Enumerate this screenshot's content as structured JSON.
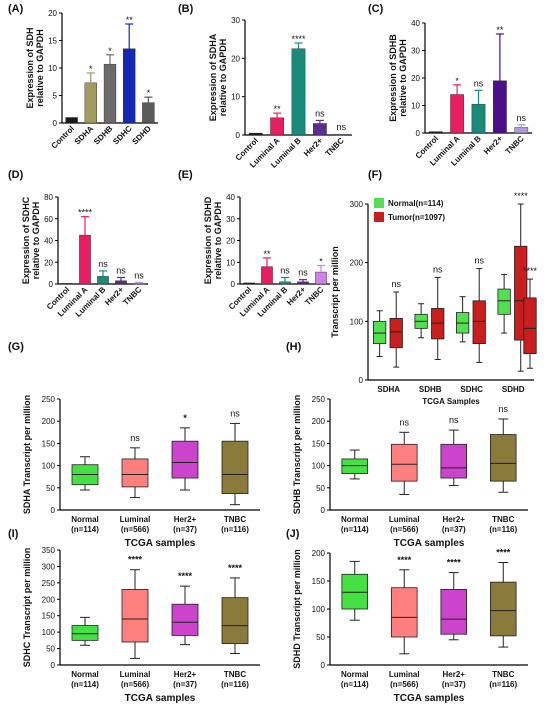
{
  "chart_data": [
    {
      "panel": "(A)",
      "type": "bar",
      "ylabel": "Expression of SDH\nrelative to GAPDH",
      "ylim": [
        0,
        20
      ],
      "yticks": [
        0,
        5,
        10,
        15,
        20
      ],
      "categories": [
        "Control",
        "SDHA",
        "SDHB",
        "SDHC",
        "SDHD"
      ],
      "values": [
        1,
        7.3,
        10.7,
        13.5,
        3.7
      ],
      "errors": [
        0,
        1.8,
        1.7,
        4.5,
        1.0
      ],
      "significance": [
        "",
        "*",
        "*",
        "**",
        "*"
      ],
      "colors": [
        "#1a1a1a",
        "#a39a5e",
        "#6b6b6b",
        "#1428b4",
        "#5a5a5a"
      ]
    },
    {
      "panel": "(B)",
      "type": "bar",
      "ylabel": "Expression of SDHA\nrelative to GAPDH",
      "ylim": [
        0,
        30
      ],
      "yticks": [
        0,
        10,
        20,
        30
      ],
      "categories": [
        "Control",
        "Luminal A",
        "Luminal B",
        "Her2+",
        "TNBC"
      ],
      "values": [
        0.5,
        4.5,
        22.5,
        3,
        0.2
      ],
      "errors": [
        0,
        1.2,
        1.5,
        0.8,
        0
      ],
      "significance": [
        "",
        "**",
        "****",
        "ns",
        "ns"
      ],
      "colors": [
        "#1a1a1a",
        "#e81e63",
        "#1b8a7a",
        "#5b2d8e",
        "#b29ad6"
      ]
    },
    {
      "panel": "(C)",
      "type": "bar",
      "ylabel": "Expression of SDHB\nrelative to GAPDH",
      "ylim": [
        0,
        40
      ],
      "yticks": [
        0,
        10,
        20,
        30,
        40
      ],
      "categories": [
        "Control",
        "Luminal A",
        "Luminal B",
        "Her2+",
        "TNBC"
      ],
      "values": [
        0.5,
        14,
        10.5,
        19,
        2
      ],
      "errors": [
        0,
        3.5,
        5,
        17,
        1
      ],
      "significance": [
        "",
        "*",
        "ns",
        "**",
        "ns"
      ],
      "colors": [
        "#1a1a1a",
        "#e81e63",
        "#1b8a7a",
        "#4b0f8a",
        "#b29ad6"
      ]
    },
    {
      "panel": "(D)",
      "type": "bar",
      "ylabel": "Expression of SDHC\nrelative to GAPDH",
      "ylim": [
        0,
        80
      ],
      "yticks": [
        0,
        20,
        40,
        60,
        80
      ],
      "categories": [
        "Control",
        "Luminal A",
        "Luminal B",
        "Her2+",
        "TNBC"
      ],
      "values": [
        0.5,
        45,
        7,
        3,
        0.5
      ],
      "errors": [
        0,
        17,
        5,
        3,
        1
      ],
      "significance": [
        "",
        "****",
        "ns",
        "ns",
        "ns"
      ],
      "colors": [
        "#1a1a1a",
        "#e81e63",
        "#1b8a7a",
        "#5b2d8e",
        "#b29ad6"
      ]
    },
    {
      "panel": "(E)",
      "type": "bar",
      "ylabel": "Expression of SDHD\nrelative to GAPDH",
      "ylim": [
        0,
        40
      ],
      "yticks": [
        0,
        10,
        20,
        30,
        40
      ],
      "categories": [
        "Control",
        "Luminal A",
        "Luminal B",
        "Her2+",
        "TNBC"
      ],
      "values": [
        0.5,
        8,
        1,
        1,
        5.5
      ],
      "errors": [
        0,
        4,
        2,
        1,
        3
      ],
      "significance": [
        "",
        "**",
        "ns",
        "ns",
        "*"
      ],
      "colors": [
        "#1a1a1a",
        "#e81e63",
        "#1b8a7a",
        "#5b2d8e",
        "#d080e8"
      ]
    },
    {
      "panel": "(F)",
      "type": "box",
      "ylabel": "Transcript per million",
      "xlabel": "TCGA Samples",
      "ylim": [
        0,
        300
      ],
      "yticks": [
        0,
        100,
        200,
        300
      ],
      "categories": [
        "SDHA",
        "SDHB",
        "SDHC",
        "SDHD"
      ],
      "legend": [
        "Normal(n=114)",
        "Tumor(n=1097)"
      ],
      "legend_colors": [
        "#52e052",
        "#c81e1e"
      ],
      "series": [
        {
          "name": "Normal(n=114)",
          "boxes": [
            [
              40,
              62,
              80,
              100,
              118
            ],
            [
              72,
              88,
              100,
              112,
              130
            ],
            [
              65,
              80,
              97,
              115,
              142
            ],
            [
              80,
              112,
              135,
              155,
              180
            ]
          ]
        },
        {
          "name": "Tumor(n=1097)",
          "boxes": [
            [
              22,
              55,
              82,
              105,
              150
            ],
            [
              35,
              70,
              97,
              122,
              175
            ],
            [
              30,
              62,
              100,
              135,
              190
            ],
            [
              15,
              68,
              135,
              228,
              300
            ]
          ]
        },
        {
          "name": "Tumor-SDHD-right",
          "boxes": []
        }
      ],
      "extra_box": [
        20,
        45,
        88,
        140,
        172
      ],
      "significance": [
        "ns",
        "ns",
        "ns",
        "****",
        "****"
      ]
    },
    {
      "panel": "(G)",
      "type": "box",
      "ylabel": "SDHA Transcript per million",
      "xlabel": "TCGA samples",
      "ylim": [
        0,
        250
      ],
      "yticks": [
        0,
        50,
        100,
        150,
        200,
        250
      ],
      "categories": [
        "Normal\n(n=114)",
        "Luminal\n(n=566)",
        "Her2+\n(n=37)",
        "TNBC\n(n=116)"
      ],
      "boxes": [
        [
          45,
          57,
          80,
          102,
          120
        ],
        [
          28,
          52,
          80,
          115,
          140
        ],
        [
          45,
          72,
          107,
          155,
          185
        ],
        [
          12,
          37,
          80,
          155,
          195
        ]
      ],
      "significance": [
        "",
        "ns",
        "*",
        "ns"
      ],
      "colors": [
        "#44e044",
        "#ff7f7f",
        "#cc44cc",
        "#8a7a3c"
      ]
    },
    {
      "panel": "(H)",
      "type": "box",
      "ylabel": "SDHB Transcript per million",
      "xlabel": "TCGA samples",
      "ylim": [
        0,
        250
      ],
      "yticks": [
        0,
        50,
        100,
        150,
        200,
        250
      ],
      "categories": [
        "Normal\n(n=114)",
        "Luminal\n(n=566)",
        "Her2+\n(n=37)",
        "TNBC\n(n=116)"
      ],
      "boxes": [
        [
          70,
          82,
          100,
          115,
          135
        ],
        [
          35,
          65,
          103,
          148,
          175
        ],
        [
          55,
          72,
          95,
          148,
          180
        ],
        [
          40,
          65,
          105,
          170,
          205
        ]
      ],
      "significance": [
        "",
        "ns",
        "ns",
        "ns"
      ],
      "colors": [
        "#44e044",
        "#ff7f7f",
        "#cc44cc",
        "#8a7a3c"
      ]
    },
    {
      "panel": "(I)",
      "type": "box",
      "ylabel": "SDHC Transcript per million",
      "xlabel": "TCGA samples",
      "ylim": [
        0,
        350
      ],
      "yticks": [
        0,
        50,
        100,
        150,
        200,
        250,
        300,
        350
      ],
      "categories": [
        "Normal\n(n=114)",
        "Luminal\n(n=566)",
        "Her2+\n(n=37)",
        "TNBC\n(n=116)"
      ],
      "boxes": [
        [
          60,
          75,
          95,
          120,
          145
        ],
        [
          20,
          70,
          140,
          230,
          290
        ],
        [
          62,
          90,
          130,
          185,
          240
        ],
        [
          35,
          65,
          120,
          205,
          265
        ]
      ],
      "significance": [
        "",
        "****",
        "****",
        "****"
      ],
      "colors": [
        "#44e044",
        "#ff7f7f",
        "#cc44cc",
        "#8a7a3c"
      ]
    },
    {
      "panel": "(J)",
      "type": "box",
      "ylabel": "SDHD Transcript per million",
      "xlabel": "TCGA samples",
      "ylim": [
        0,
        200
      ],
      "yticks": [
        0,
        50,
        100,
        150,
        200
      ],
      "categories": [
        "Normal\n(n=114)",
        "Luminal\n(n=566)",
        "Her2+\n(n=37)",
        "TNBC\n(n=116)"
      ],
      "boxes": [
        [
          80,
          100,
          130,
          162,
          185
        ],
        [
          20,
          50,
          85,
          138,
          170
        ],
        [
          45,
          55,
          82,
          135,
          165
        ],
        [
          32,
          52,
          97,
          148,
          183
        ]
      ],
      "significance": [
        "",
        "****",
        "****",
        "****"
      ],
      "colors": [
        "#44e044",
        "#ff7f7f",
        "#cc44cc",
        "#8a7a3c"
      ]
    }
  ]
}
